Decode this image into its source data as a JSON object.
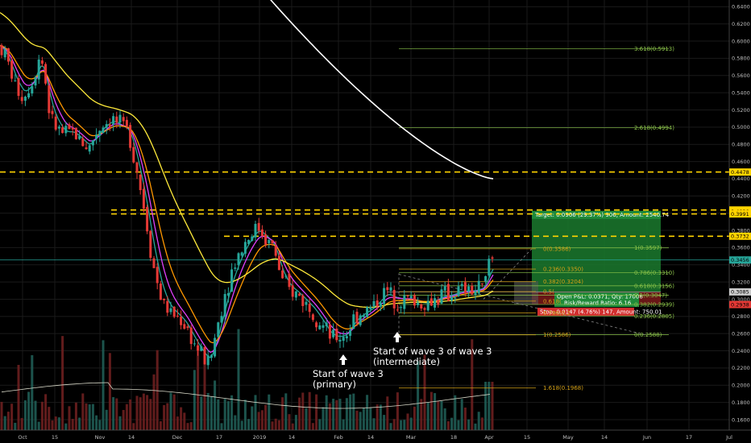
{
  "chart_data": {
    "type": "candlestick",
    "x_ticks": [
      "Oct",
      "15",
      "Nov",
      "14",
      "Dec",
      "17",
      "2019",
      "14",
      "Feb",
      "14",
      "Mar",
      "18",
      "Apr",
      "15",
      "May",
      "14",
      "Jun",
      "17",
      "Jul"
    ],
    "y_ticks": [
      "0.1600",
      "0.1800",
      "0.2000",
      "0.2200",
      "0.2400",
      "0.2600",
      "0.2800",
      "0.3000",
      "0.3200",
      "0.3400",
      "0.3600",
      "0.3800",
      "0.4000",
      "0.4200",
      "0.4400",
      "0.4600",
      "0.4800",
      "0.5000",
      "0.5200",
      "0.5400",
      "0.5600",
      "0.5800",
      "0.6000",
      "0.6200",
      "0.6400"
    ],
    "ylim": [
      0.145,
      0.645
    ],
    "price_series_approx": [
      [
        0,
        0.595
      ],
      [
        10,
        0.575
      ],
      [
        20,
        0.545
      ],
      [
        30,
        0.535
      ],
      [
        40,
        0.555
      ],
      [
        50,
        0.585
      ],
      [
        55,
        0.565
      ],
      [
        60,
        0.525
      ],
      [
        65,
        0.505
      ],
      [
        70,
        0.5
      ],
      [
        80,
        0.49
      ],
      [
        90,
        0.495
      ],
      [
        100,
        0.485
      ],
      [
        110,
        0.475
      ],
      [
        120,
        0.495
      ],
      [
        130,
        0.505
      ],
      [
        140,
        0.51
      ],
      [
        150,
        0.5
      ],
      [
        160,
        0.495
      ],
      [
        170,
        0.45
      ],
      [
        180,
        0.4
      ],
      [
        190,
        0.34
      ],
      [
        200,
        0.3
      ],
      [
        210,
        0.285
      ],
      [
        220,
        0.28
      ],
      [
        230,
        0.27
      ],
      [
        240,
        0.25
      ],
      [
        250,
        0.235
      ],
      [
        260,
        0.225
      ],
      [
        270,
        0.27
      ],
      [
        280,
        0.31
      ],
      [
        290,
        0.34
      ],
      [
        300,
        0.36
      ],
      [
        310,
        0.375
      ],
      [
        320,
        0.385
      ],
      [
        330,
        0.37
      ],
      [
        340,
        0.36
      ],
      [
        350,
        0.32
      ],
      [
        360,
        0.31
      ],
      [
        370,
        0.305
      ],
      [
        380,
        0.295
      ],
      [
        390,
        0.285
      ],
      [
        400,
        0.27
      ],
      [
        410,
        0.255
      ],
      [
        420,
        0.255
      ],
      [
        430,
        0.26
      ],
      [
        440,
        0.28
      ],
      [
        450,
        0.285
      ],
      [
        460,
        0.29
      ],
      [
        470,
        0.3
      ],
      [
        480,
        0.31
      ],
      [
        490,
        0.3
      ],
      [
        500,
        0.3
      ],
      [
        510,
        0.3
      ],
      [
        520,
        0.295
      ],
      [
        530,
        0.295
      ],
      [
        540,
        0.3
      ],
      [
        550,
        0.305
      ],
      [
        560,
        0.305
      ],
      [
        570,
        0.31
      ],
      [
        580,
        0.31
      ],
      [
        590,
        0.31
      ],
      [
        600,
        0.315
      ],
      [
        610,
        0.345
      ]
    ],
    "horizontal_levels": [
      0.4478,
      0.4037,
      0.3991,
      0.3732
    ],
    "fibonacci_extension": [
      {
        "label": "3.618(0.5913)",
        "value": 0.5913
      },
      {
        "label": "2.618(0.4994)",
        "value": 0.4994
      },
      {
        "label": "1(0.3597)",
        "value": 0.3597
      },
      {
        "label": "0.786(0.3310)",
        "value": 0.331
      },
      {
        "label": "0.618(0.3156)",
        "value": 0.3156
      },
      {
        "label": "0.5(0.3047)",
        "value": 0.3047
      },
      {
        "label": "0.382(0.2939)",
        "value": 0.2939
      },
      {
        "label": "0.236(0.2805)",
        "value": 0.2805
      },
      {
        "label": "0(0.2588)",
        "value": 0.2588
      }
    ],
    "fibonacci_retracement": [
      {
        "label": "0(0.3586)",
        "value": 0.3586
      },
      {
        "label": "0.236(0.3350)",
        "value": 0.335
      },
      {
        "label": "0.382(0.3204)",
        "value": 0.3204
      },
      {
        "label": "0.5(",
        "value": 0.3088
      },
      {
        "label": "0.618(",
        "value": 0.2978
      },
      {
        "label": "0.786(0.2",
        "value": 0.284
      },
      {
        "label": "1(0.2586)",
        "value": 0.2586
      },
      {
        "label": "1.618(0.1968)",
        "value": 0.1968
      }
    ],
    "position": {
      "target": "Target: 0.0906 (29.37%) 906, Amount: 2540.74",
      "pnl": "Open P&L: 0.0371, Qty: 17006",
      "rr": "Risk/Reward Ratio: 6.16",
      "stop": "Stop: 0.0147 (4.76%) 147, Amount: 750.01",
      "target_price": 0.399,
      "entry_price": 0.3085,
      "stop_price": 0.2938
    },
    "price_tags": [
      {
        "label": "0.4478",
        "value": 0.4478,
        "color": "#ffd400"
      },
      {
        "label": "0.4037",
        "value": 0.4037,
        "color": "#ffd400"
      },
      {
        "label": "0.4020",
        "value": 0.402,
        "color": "#ffd400"
      },
      {
        "label": "0.3991",
        "value": 0.3991,
        "color": "#ffd400"
      },
      {
        "label": "0.3732",
        "value": 0.3732,
        "color": "#ffd400"
      },
      {
        "label": "0.3456",
        "value": 0.3456,
        "color": "#26a69a"
      },
      {
        "label": "0.3085",
        "value": 0.3085,
        "color": "#cccccc"
      },
      {
        "label": "0.2938",
        "value": 0.2938,
        "color": "#e53935"
      }
    ],
    "annotations": [
      {
        "lines": [
          "Start of wave 3",
          "(primary)"
        ]
      },
      {
        "lines": [
          "Start of wave 3 of wave 3",
          "(intermediate)"
        ]
      }
    ],
    "colors": {
      "background": "#000000",
      "up": "#26a69a",
      "down": "#e53935",
      "ema_fast": "#26a69a",
      "ema_mid": "#e040fb",
      "ema_slow": "#ff9800",
      "ema_long": "#ffeb3b",
      "ema_200": "#ffffff",
      "support_line": "#ffd400",
      "fib": "#8bc34a",
      "retracement": "#d4a017",
      "target_zone": "#1b7a2e",
      "stop_zone": "#7a1a1a"
    }
  }
}
